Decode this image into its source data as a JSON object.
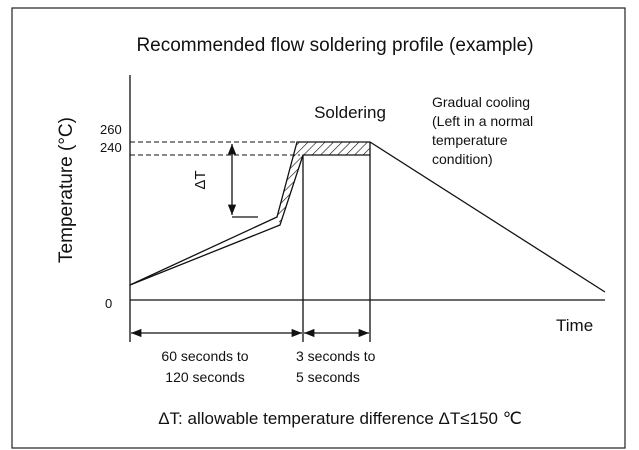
{
  "title": "Recommended flow soldering profile (example)",
  "y_axis_label": "Temperature (°C)",
  "x_axis_label": "Time",
  "y_labels": [
    "260",
    "240",
    "0"
  ],
  "delta_label": "ΔT",
  "soldering_label": "Soldering",
  "cooling_note": [
    "Gradual cooling",
    "(Left in a normal",
    "temperature",
    "condition)"
  ],
  "preheat_duration": [
    "60 seconds to",
    "120 seconds"
  ],
  "soldering_duration": [
    "3 seconds to",
    "5 seconds"
  ],
  "footnote": "ΔT: allowable temperature difference ΔT≤150 ℃"
}
